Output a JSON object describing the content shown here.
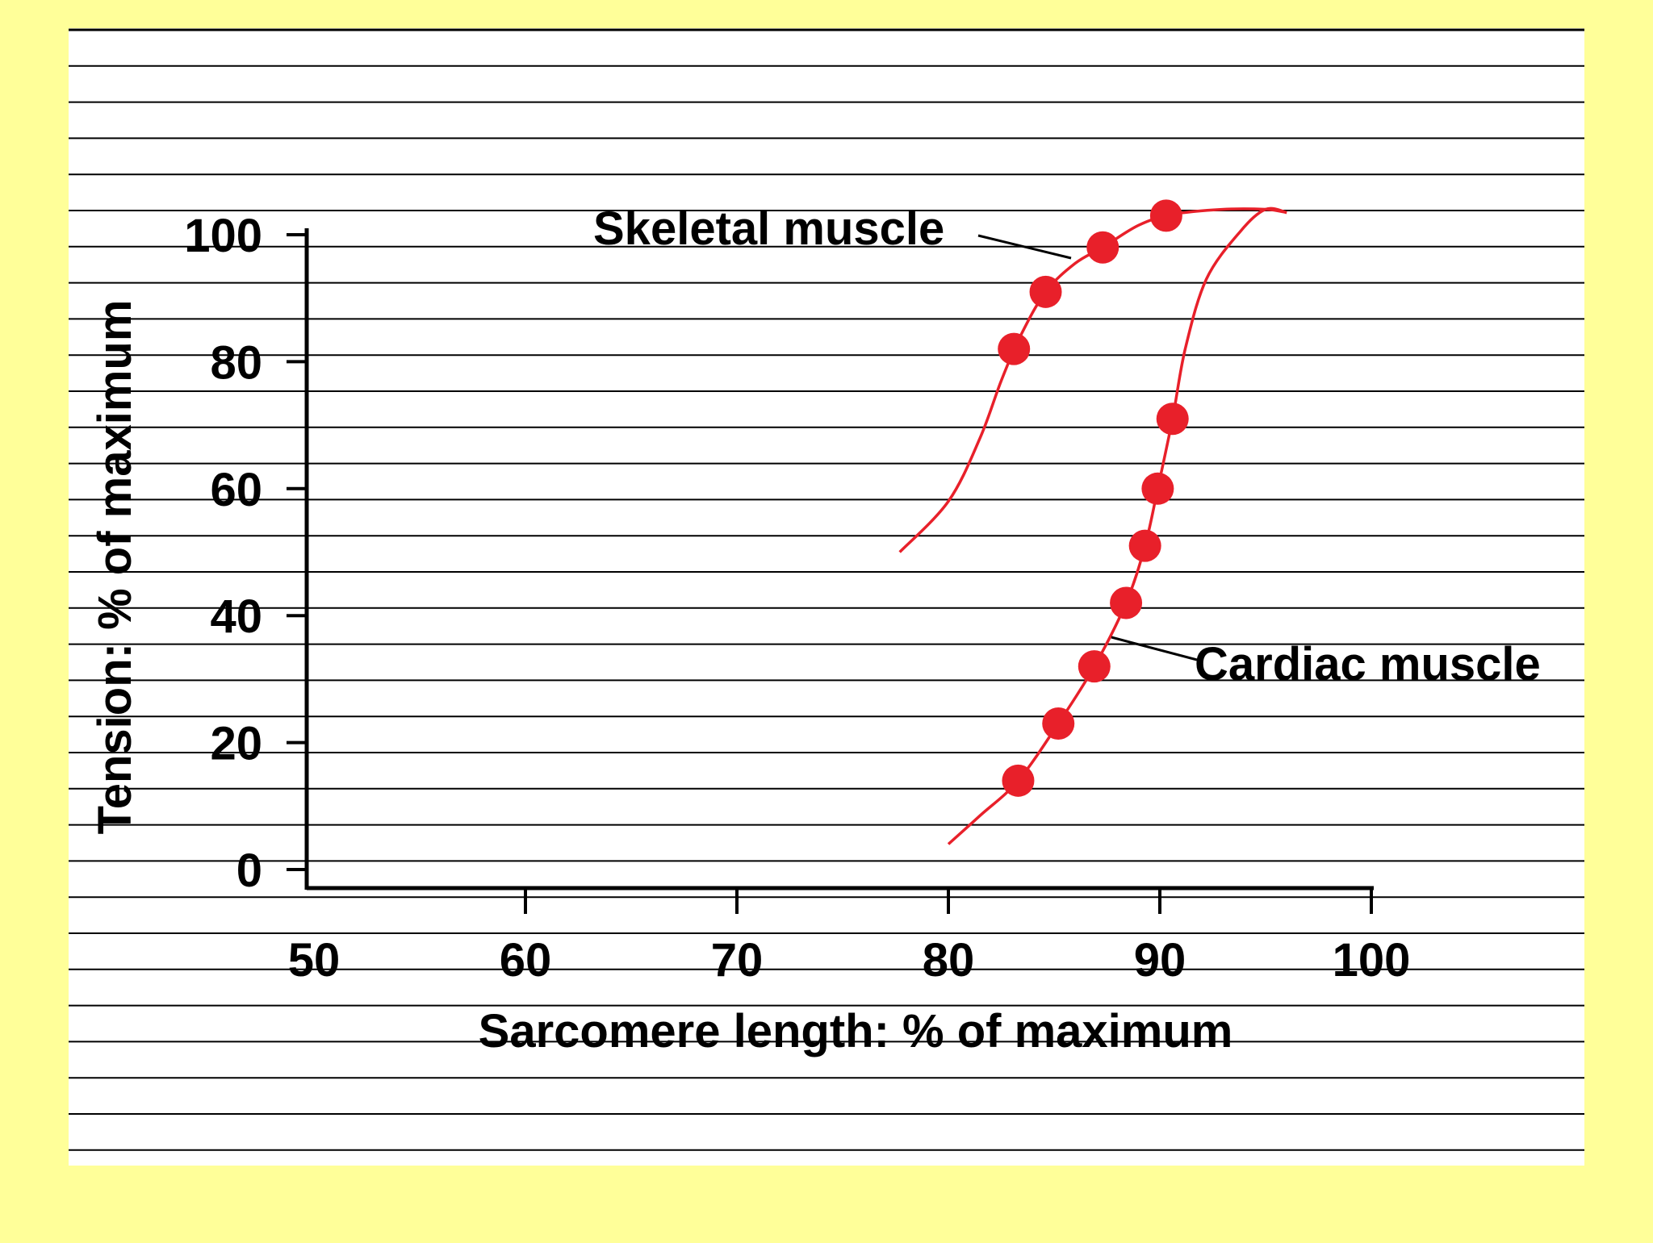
{
  "chart_data": {
    "type": "scatter",
    "xlabel": "Sarcomere length: % of maximum",
    "ylabel": "Tension: % of maximum",
    "xlim": [
      50,
      100
    ],
    "ylim": [
      0,
      100
    ],
    "x_ticks": [
      "50",
      "60",
      "70",
      "80",
      "90",
      "100"
    ],
    "y_ticks": [
      "0",
      "20",
      "40",
      "60",
      "80",
      "100"
    ],
    "grid": false,
    "series": [
      {
        "name": "Skeletal muscle",
        "color": "#e8202a",
        "points": [
          {
            "x": 83.1,
            "y": 82
          },
          {
            "x": 84.6,
            "y": 91
          },
          {
            "x": 87.3,
            "y": 98
          },
          {
            "x": 90.3,
            "y": 103
          }
        ],
        "curve": [
          {
            "x": 77.7,
            "y": 50
          },
          {
            "x": 80.0,
            "y": 58
          },
          {
            "x": 81.5,
            "y": 68
          },
          {
            "x": 82.5,
            "y": 77
          },
          {
            "x": 83.4,
            "y": 84
          },
          {
            "x": 84.6,
            "y": 91
          },
          {
            "x": 86.0,
            "y": 95.5
          },
          {
            "x": 87.3,
            "y": 98
          },
          {
            "x": 89.0,
            "y": 101.5
          },
          {
            "x": 90.6,
            "y": 103.2
          },
          {
            "x": 93.0,
            "y": 104
          },
          {
            "x": 95.0,
            "y": 104
          },
          {
            "x": 96.0,
            "y": 103.5
          }
        ]
      },
      {
        "name": "Cardiac muscle",
        "color": "#e8202a",
        "points": [
          {
            "x": 83.3,
            "y": 14
          },
          {
            "x": 85.2,
            "y": 23
          },
          {
            "x": 86.9,
            "y": 32
          },
          {
            "x": 88.4,
            "y": 42
          },
          {
            "x": 89.3,
            "y": 51
          },
          {
            "x": 89.9,
            "y": 60
          },
          {
            "x": 90.6,
            "y": 71
          }
        ],
        "curve": [
          {
            "x": 80.0,
            "y": 4
          },
          {
            "x": 81.5,
            "y": 8.5
          },
          {
            "x": 83.3,
            "y": 14
          },
          {
            "x": 85.2,
            "y": 23
          },
          {
            "x": 86.9,
            "y": 32
          },
          {
            "x": 88.4,
            "y": 42
          },
          {
            "x": 89.3,
            "y": 51
          },
          {
            "x": 89.9,
            "y": 60
          },
          {
            "x": 90.6,
            "y": 71
          },
          {
            "x": 91.2,
            "y": 82
          },
          {
            "x": 92.2,
            "y": 93
          },
          {
            "x": 93.8,
            "y": 100.5
          },
          {
            "x": 95.0,
            "y": 104
          },
          {
            "x": 96.0,
            "y": 103.5
          }
        ]
      }
    ],
    "annotations": [
      {
        "text": "Skeletal muscle",
        "series": "Skeletal muscle"
      },
      {
        "text": "Cardiac muscle",
        "series": "Cardiac muscle"
      }
    ]
  }
}
